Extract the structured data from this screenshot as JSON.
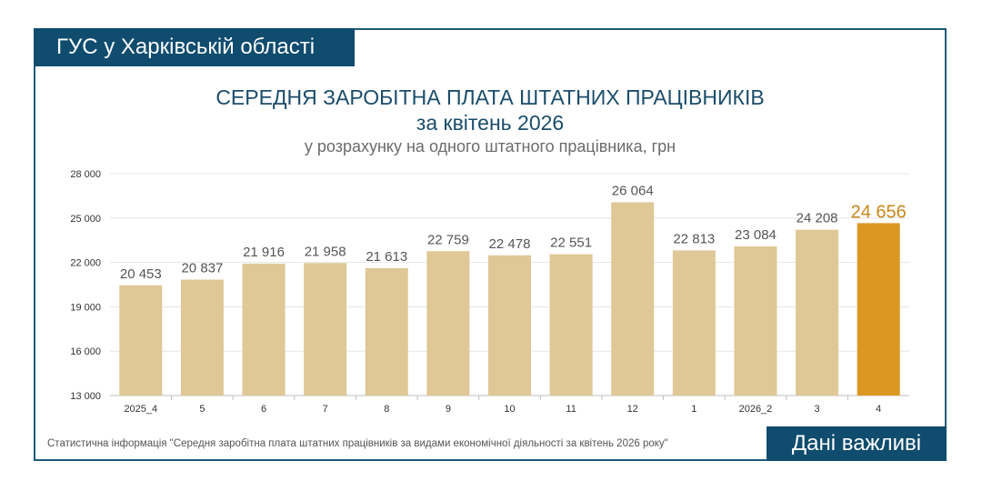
{
  "header": {
    "org": "ГУС у Харківській області",
    "title_line1": "СЕРЕДНЯ ЗАРОБІТНА ПЛАТА ШТАТНИХ ПРАЦІВНИКІВ",
    "title_line2": "за квітень 2026",
    "subtitle": "у розрахунку на одного штатного працівника, грн"
  },
  "footer": {
    "source": "Статистична інформація \"Середня заробітна плата штатних працівників за видами економічної діяльності за квітень 2026 року\"",
    "badge": "Дані важливі"
  },
  "colors": {
    "bar": "#dfc796",
    "highlight": "#dc9622",
    "highlight_label": "#c8861a",
    "label": "#555555",
    "grid": "#e6e6e6",
    "brand": "#0f4c6e"
  },
  "chart_data": {
    "type": "bar",
    "categories": [
      "2025_4",
      "5",
      "6",
      "7",
      "8",
      "9",
      "10",
      "11",
      "12",
      "1",
      "2026_2",
      "3",
      "4"
    ],
    "values": [
      20453,
      20837,
      21916,
      21958,
      21613,
      22759,
      22478,
      22551,
      26064,
      22813,
      23084,
      24208,
      24656
    ],
    "value_labels": [
      "20 453",
      "20 837",
      "21 916",
      "21 958",
      "21 613",
      "22 759",
      "22 478",
      "22 551",
      "26 064",
      "22 813",
      "23 084",
      "24 208",
      "24 656"
    ],
    "highlight_index": 12,
    "ylim": [
      13000,
      28000
    ],
    "yticks": [
      13000,
      16000,
      19000,
      22000,
      25000,
      28000
    ],
    "ytick_labels": [
      "13 000",
      "16 000",
      "19 000",
      "22 000",
      "25 000",
      "28 000"
    ],
    "grid": true,
    "legend": "none"
  }
}
